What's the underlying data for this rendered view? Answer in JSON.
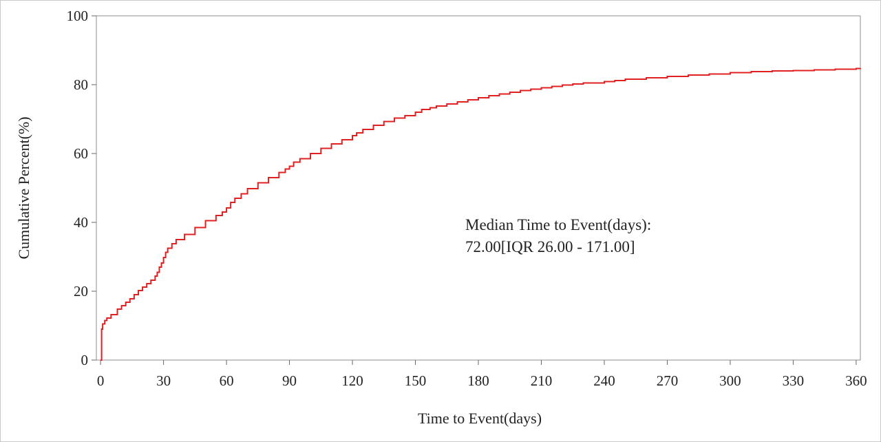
{
  "chart_data": {
    "type": "line",
    "xlabel": "Time to Event(days)",
    "ylabel": "Cumulative Percent(%)",
    "xlim": [
      -2,
      362
    ],
    "ylim": [
      0,
      100
    ],
    "x_ticks": [
      0,
      30,
      60,
      90,
      120,
      150,
      180,
      210,
      240,
      270,
      300,
      330,
      360
    ],
    "y_ticks": [
      0,
      20,
      40,
      60,
      80,
      100
    ],
    "grid": false,
    "line_color": "#e02020",
    "step": true,
    "annotation": [
      "Median Time to Event(days):",
      "72.00[IQR 26.00 - 171.00]"
    ],
    "series": [
      {
        "x": [
          0,
          0.5,
          1,
          2,
          3,
          5,
          8,
          10,
          12,
          14,
          16,
          18,
          20,
          22,
          24,
          26,
          27,
          28,
          29,
          30,
          31,
          32,
          34,
          36,
          40,
          45,
          50,
          55,
          58,
          60,
          62,
          64,
          67,
          70,
          75,
          80,
          85,
          88,
          90,
          92,
          95,
          100,
          105,
          110,
          115,
          120,
          122,
          125,
          130,
          135,
          140,
          145,
          150,
          153,
          157,
          160,
          165,
          170,
          175,
          180,
          185,
          190,
          195,
          200,
          205,
          210,
          215,
          220,
          225,
          230,
          240,
          245,
          250,
          260,
          270,
          280,
          290,
          300,
          310,
          320,
          330,
          340,
          350,
          360,
          362
        ],
        "y": [
          0,
          9,
          10.5,
          11.5,
          12.2,
          13.2,
          14.8,
          15.8,
          16.8,
          17.8,
          19,
          20.2,
          21.2,
          22.2,
          23.2,
          24.4,
          25.5,
          27,
          28.2,
          29.8,
          31.3,
          32.5,
          33.8,
          35,
          36.5,
          38.5,
          40.5,
          42,
          43,
          44.2,
          45.8,
          47,
          48.3,
          49.8,
          51.5,
          53,
          54.5,
          55.5,
          56.3,
          57.5,
          58.5,
          60,
          61.5,
          62.8,
          64,
          65.2,
          66,
          67,
          68.2,
          69.3,
          70.3,
          71,
          72,
          72.8,
          73.3,
          73.8,
          74.4,
          75,
          75.6,
          76.2,
          76.8,
          77.3,
          77.8,
          78.3,
          78.7,
          79.1,
          79.5,
          79.9,
          80.2,
          80.5,
          80.9,
          81.2,
          81.6,
          82,
          82.4,
          82.8,
          83.1,
          83.5,
          83.8,
          84,
          84.1,
          84.3,
          84.5,
          84.7,
          84.8
        ]
      }
    ]
  }
}
